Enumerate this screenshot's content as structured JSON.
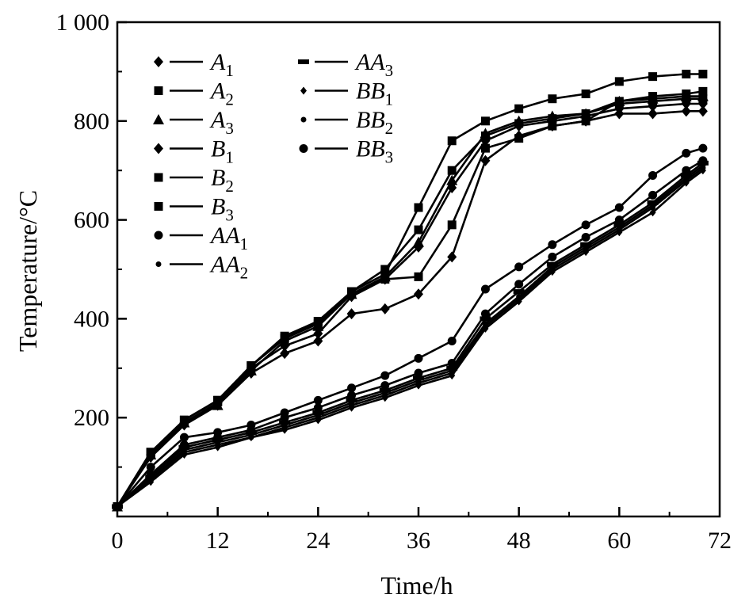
{
  "chart_data": {
    "type": "line",
    "xlabel": "Time/h",
    "ylabel": "Temperature/°C",
    "xlim": [
      0,
      72
    ],
    "ylim": [
      0,
      1000
    ],
    "x_ticks": [
      0,
      12,
      24,
      36,
      48,
      60,
      72
    ],
    "x_tick_labels": [
      "0",
      "12",
      "24",
      "36",
      "48",
      "60",
      "72"
    ],
    "y_ticks": [
      200,
      400,
      600,
      800,
      1000
    ],
    "y_tick_labels": [
      "200",
      "400",
      "600",
      "800",
      "1 000"
    ],
    "grid": false,
    "legend_position": "top-left",
    "series": [
      {
        "name": "A1",
        "label_main": "A",
        "label_sub": "1",
        "marker": "diamond",
        "x": [
          0,
          4,
          8,
          12,
          16,
          20,
          24,
          28,
          32,
          36,
          40,
          44,
          48,
          52,
          56,
          60,
          64,
          68,
          70
        ],
        "y": [
          20,
          120,
          185,
          225,
          290,
          330,
          355,
          410,
          420,
          450,
          525,
          720,
          770,
          790,
          800,
          815,
          815,
          820,
          820
        ]
      },
      {
        "name": "A2",
        "label_main": "A",
        "label_sub": "2",
        "marker": "square",
        "x": [
          0,
          4,
          8,
          12,
          16,
          20,
          24,
          28,
          32,
          36,
          40,
          44,
          48,
          52,
          56,
          60,
          64,
          68,
          70
        ],
        "y": [
          20,
          130,
          195,
          235,
          305,
          365,
          395,
          455,
          490,
          625,
          760,
          800,
          825,
          845,
          855,
          880,
          890,
          895,
          895
        ]
      },
      {
        "name": "A3",
        "label_main": "A",
        "label_sub": "3",
        "marker": "triangle",
        "x": [
          0,
          4,
          8,
          12,
          16,
          20,
          24,
          28,
          32,
          36,
          40,
          44,
          48,
          52,
          56,
          60,
          64,
          68,
          70
        ],
        "y": [
          20,
          125,
          190,
          225,
          295,
          355,
          385,
          450,
          485,
          555,
          680,
          775,
          800,
          810,
          815,
          840,
          845,
          850,
          850
        ]
      },
      {
        "name": "B1",
        "label_main": "B",
        "label_sub": "1",
        "marker": "diamond",
        "x": [
          0,
          4,
          8,
          12,
          16,
          20,
          24,
          28,
          32,
          36,
          40,
          44,
          48,
          52,
          56,
          60,
          64,
          68,
          70
        ],
        "y": [
          20,
          125,
          190,
          230,
          300,
          345,
          370,
          445,
          480,
          545,
          665,
          760,
          790,
          800,
          810,
          825,
          830,
          835,
          835
        ]
      },
      {
        "name": "B2",
        "label_main": "B",
        "label_sub": "2",
        "marker": "square",
        "x": [
          0,
          4,
          8,
          12,
          16,
          20,
          24,
          28,
          32,
          36,
          40,
          44,
          48,
          52,
          56,
          60,
          64,
          68,
          70
        ],
        "y": [
          20,
          130,
          195,
          235,
          305,
          360,
          395,
          455,
          500,
          580,
          700,
          770,
          795,
          805,
          815,
          835,
          840,
          845,
          845
        ]
      },
      {
        "name": "B3",
        "label_main": "B",
        "label_sub": "3",
        "marker": "square",
        "x": [
          0,
          4,
          8,
          12,
          16,
          20,
          24,
          28,
          32,
          36,
          40,
          44,
          48,
          52,
          56,
          60,
          64,
          68,
          70
        ],
        "y": [
          20,
          130,
          195,
          235,
          305,
          360,
          390,
          450,
          480,
          485,
          590,
          745,
          765,
          790,
          800,
          840,
          850,
          855,
          860
        ]
      },
      {
        "name": "AA1",
        "label_main": "AA",
        "label_sub": "1",
        "marker": "circle",
        "x": [
          0,
          4,
          8,
          12,
          16,
          20,
          24,
          28,
          32,
          36,
          40,
          44,
          48,
          52,
          56,
          60,
          64,
          68,
          70
        ],
        "y": [
          20,
          85,
          145,
          160,
          175,
          200,
          220,
          245,
          265,
          290,
          310,
          410,
          470,
          525,
          565,
          600,
          650,
          700,
          720
        ]
      },
      {
        "name": "AA2",
        "label_main": "AA",
        "label_sub": "2",
        "marker": "dot",
        "x": [
          0,
          4,
          8,
          12,
          16,
          20,
          24,
          28,
          32,
          36,
          40,
          44,
          48,
          52,
          56,
          60,
          64,
          68,
          70
        ],
        "y": [
          20,
          75,
          130,
          145,
          160,
          180,
          200,
          225,
          245,
          270,
          290,
          385,
          440,
          500,
          540,
          580,
          625,
          680,
          705
        ]
      },
      {
        "name": "AA3",
        "label_main": "AA",
        "label_sub": "3",
        "marker": "dash",
        "x": [
          0,
          4,
          8,
          12,
          16,
          20,
          24,
          28,
          32,
          36,
          40,
          44,
          48,
          52,
          56,
          60,
          64,
          68,
          70
        ],
        "y": [
          20,
          80,
          140,
          155,
          170,
          190,
          210,
          235,
          255,
          280,
          300,
          400,
          455,
          510,
          550,
          590,
          635,
          690,
          715
        ]
      },
      {
        "name": "BB1",
        "label_main": "BB",
        "label_sub": "1",
        "marker": "diamond-small",
        "x": [
          0,
          4,
          8,
          12,
          16,
          20,
          24,
          28,
          32,
          36,
          40,
          44,
          48,
          52,
          56,
          60,
          64,
          68,
          70
        ],
        "y": [
          20,
          70,
          125,
          140,
          160,
          175,
          195,
          220,
          240,
          265,
          285,
          380,
          435,
          495,
          535,
          575,
          615,
          675,
          700
        ]
      },
      {
        "name": "BB2",
        "label_main": "BB",
        "label_sub": "2",
        "marker": "dot",
        "x": [
          0,
          4,
          8,
          12,
          16,
          20,
          24,
          28,
          32,
          36,
          40,
          44,
          48,
          52,
          56,
          60,
          64,
          68,
          70
        ],
        "y": [
          20,
          75,
          135,
          150,
          165,
          185,
          205,
          230,
          250,
          275,
          295,
          390,
          445,
          505,
          545,
          585,
          630,
          685,
          710
        ]
      },
      {
        "name": "BB3",
        "label_main": "BB",
        "label_sub": "3",
        "marker": "circle",
        "x": [
          0,
          4,
          8,
          12,
          16,
          20,
          24,
          28,
          32,
          36,
          40,
          44,
          48,
          52,
          56,
          60,
          64,
          68,
          70
        ],
        "y": [
          20,
          100,
          160,
          170,
          185,
          210,
          235,
          260,
          285,
          320,
          355,
          460,
          505,
          550,
          590,
          625,
          690,
          735,
          745
        ]
      }
    ]
  }
}
